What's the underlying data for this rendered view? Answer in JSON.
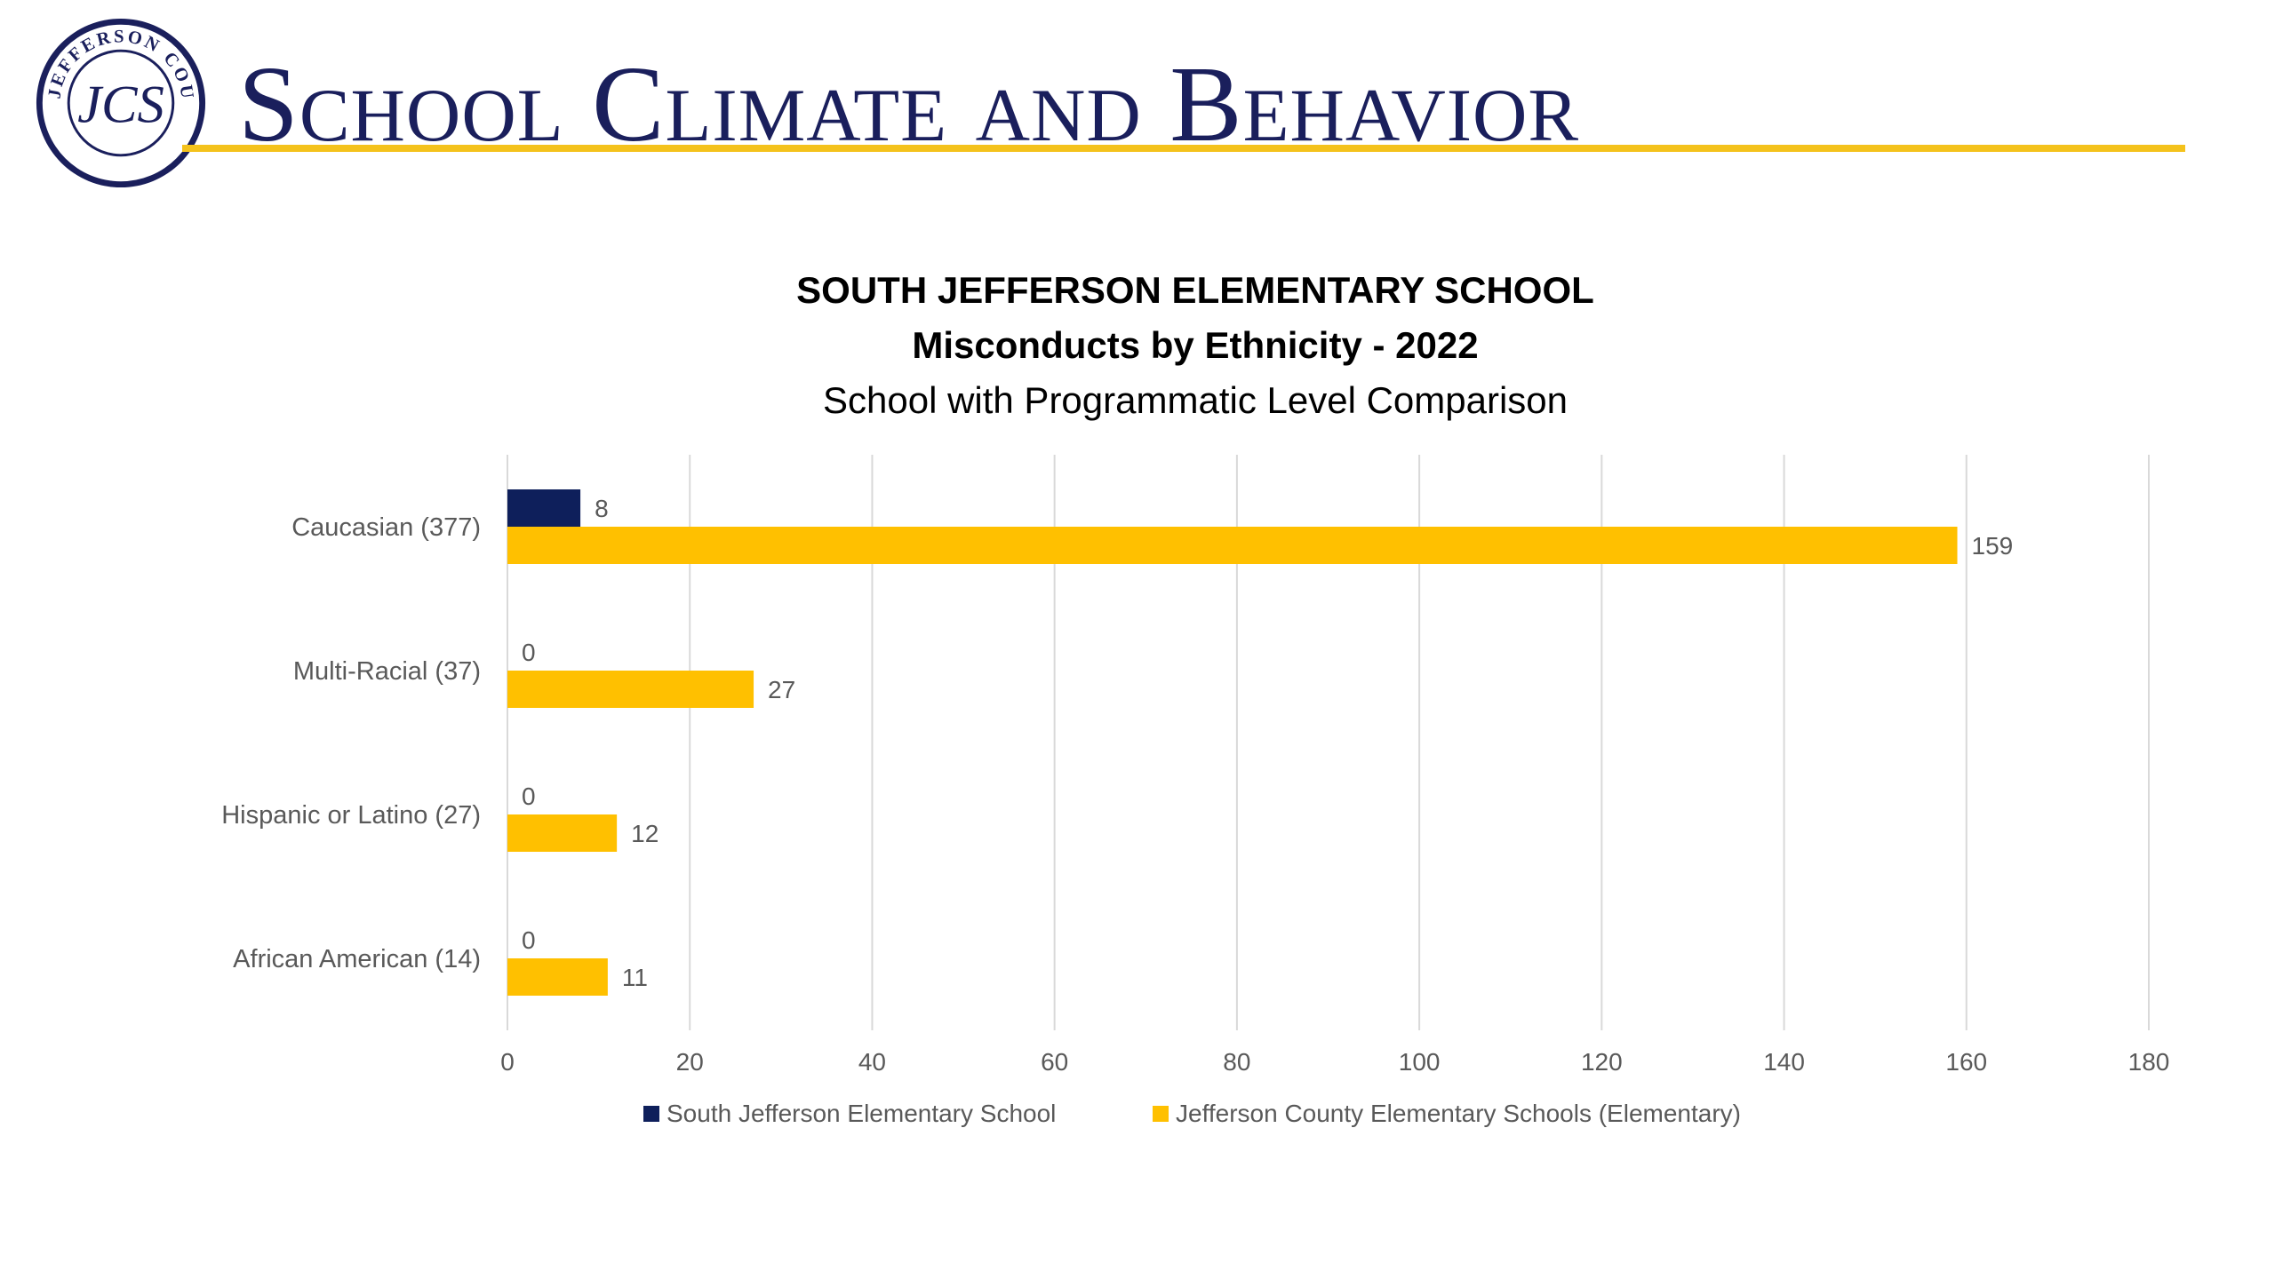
{
  "header": {
    "title": "School Climate and Behavior",
    "logo_text": "JEFFERSON COUNTY SCHOOLS",
    "logo_monogram": "JCS",
    "rule_color": "#f4c21c",
    "title_color": "#1a1f5c"
  },
  "chart_data": {
    "type": "bar",
    "orientation": "horizontal",
    "title": "SOUTH JEFFERSON ELEMENTARY SCHOOL",
    "title_line2": "Misconducts by Ethnicity - 2022",
    "subtitle": "School with Programmatic Level Comparison",
    "categories": [
      "Caucasian (377)",
      "Multi-Racial (37)",
      "Hispanic or Latino  (27)",
      "African American (14)"
    ],
    "series": [
      {
        "name": "South Jefferson Elementary School",
        "values": [
          8,
          0,
          0,
          0
        ],
        "color": "#0e1f5b"
      },
      {
        "name": "Jefferson County Elementary Schools (Elementary)",
        "values": [
          159,
          27,
          12,
          11
        ],
        "color": "#ffc000"
      }
    ],
    "xlim": [
      0,
      180
    ],
    "xticks": [
      0,
      20,
      40,
      60,
      80,
      100,
      120,
      140,
      160,
      180
    ],
    "xlabel": "",
    "ylabel": "",
    "grid": true,
    "legend_position": "bottom"
  }
}
